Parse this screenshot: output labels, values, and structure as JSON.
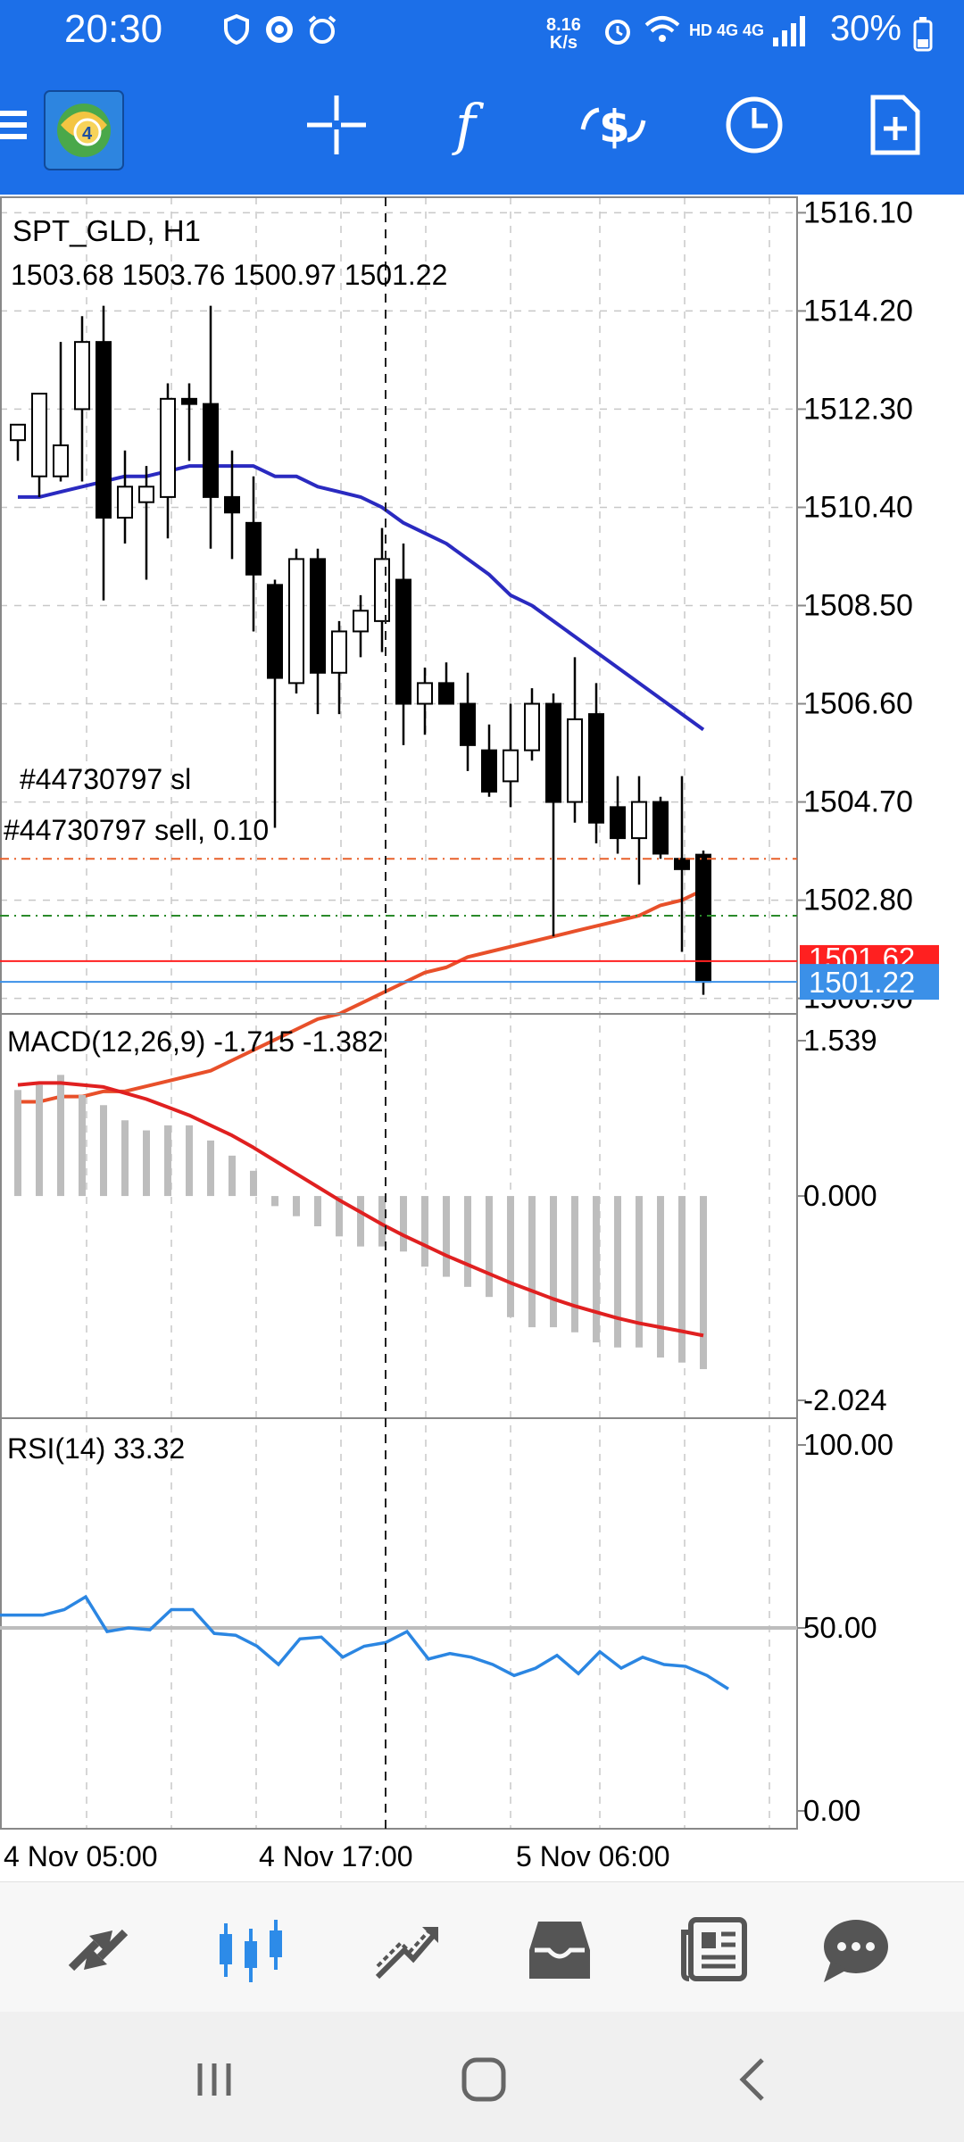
{
  "status_bar": {
    "time": "20:30",
    "net_rate_value": "8.16",
    "net_rate_unit": "K/s",
    "network": "HD 4G 4G",
    "battery": "30%"
  },
  "toolbar": {
    "icons": [
      "menu-icon",
      "app-logo-icon",
      "crosshair-icon",
      "indicators-icon",
      "symbol-change-icon",
      "timeframe-icon",
      "new-order-icon"
    ]
  },
  "chart_header": {
    "symbol": "SPT_GLD, H1",
    "ohlc": "1503.68 1503.76 1500.97 1501.22"
  },
  "order_lines": {
    "sl_label": "#44730797 sl",
    "sell_label": "#44730797 sell, 0.10"
  },
  "price_axis": {
    "ticks": [
      "1516.10",
      "1514.20",
      "1512.30",
      "1510.40",
      "1508.50",
      "1506.60",
      "1504.70",
      "1502.80",
      "1500.90"
    ],
    "ask_label": "1501.62",
    "bid_label": "1501.22"
  },
  "macd": {
    "label": "MACD(12,26,9) -1.715 -1.382",
    "ticks": [
      "1.539",
      "0.000",
      "-2.024"
    ]
  },
  "rsi": {
    "label": "RSI(14) 33.32",
    "ticks": [
      "100.00",
      "50.00",
      "0.00"
    ]
  },
  "time_axis": {
    "labels": [
      "4 Nov 05:00",
      "4 Nov 17:00",
      "5 Nov 06:00"
    ]
  },
  "colors": {
    "toolbar": "#1c6fe8",
    "ma_fast": "#2a2ac0",
    "ma_slow": "#e8502a",
    "signal": "#e02020",
    "rsi_line": "#2b86e2",
    "ask": "#ff2020",
    "bid": "#3b90e8",
    "active_tab": "#2d8be8"
  },
  "bottom_nav": {
    "items": [
      "quotes-icon",
      "chart-icon",
      "trade-icon",
      "history-icon",
      "news-icon",
      "chat-icon"
    ],
    "active": "chart-icon"
  },
  "chart_data": [
    {
      "type": "candlestick",
      "title": "SPT_GLD, H1",
      "y_ticks": [
        1516.1,
        1514.2,
        1512.3,
        1510.4,
        1508.5,
        1506.6,
        1504.7,
        1502.8,
        1500.9
      ],
      "ylim": [
        1500.6,
        1516.4
      ],
      "candles": [
        {
          "o": 1511.7,
          "h": 1512.0,
          "l": 1511.3,
          "c": 1512.0
        },
        {
          "o": 1511.0,
          "h": 1512.6,
          "l": 1510.6,
          "c": 1512.6
        },
        {
          "o": 1511.0,
          "h": 1513.6,
          "l": 1510.9,
          "c": 1511.6
        },
        {
          "o": 1512.3,
          "h": 1514.1,
          "l": 1510.9,
          "c": 1513.6
        },
        {
          "o": 1513.6,
          "h": 1514.3,
          "l": 1508.6,
          "c": 1510.2
        },
        {
          "o": 1510.2,
          "h": 1511.5,
          "l": 1509.7,
          "c": 1510.8
        },
        {
          "o": 1510.5,
          "h": 1511.2,
          "l": 1509.0,
          "c": 1510.8
        },
        {
          "o": 1510.6,
          "h": 1512.8,
          "l": 1509.8,
          "c": 1512.5
        },
        {
          "o": 1512.5,
          "h": 1512.8,
          "l": 1511.3,
          "c": 1512.4
        },
        {
          "o": 1512.4,
          "h": 1514.3,
          "l": 1509.6,
          "c": 1510.6
        },
        {
          "o": 1510.6,
          "h": 1511.5,
          "l": 1509.4,
          "c": 1510.3
        },
        {
          "o": 1510.1,
          "h": 1511.0,
          "l": 1508.0,
          "c": 1509.1
        },
        {
          "o": 1508.9,
          "h": 1509.0,
          "l": 1504.2,
          "c": 1507.1
        },
        {
          "o": 1507.0,
          "h": 1509.6,
          "l": 1506.8,
          "c": 1509.4
        },
        {
          "o": 1509.4,
          "h": 1509.6,
          "l": 1506.4,
          "c": 1507.2
        },
        {
          "o": 1507.2,
          "h": 1508.2,
          "l": 1506.4,
          "c": 1508.0
        },
        {
          "o": 1508.0,
          "h": 1508.7,
          "l": 1507.5,
          "c": 1508.4
        },
        {
          "o": 1508.2,
          "h": 1510.0,
          "l": 1507.6,
          "c": 1509.4
        },
        {
          "o": 1509.0,
          "h": 1509.7,
          "l": 1505.8,
          "c": 1506.6
        },
        {
          "o": 1506.6,
          "h": 1507.3,
          "l": 1506.0,
          "c": 1507.0
        },
        {
          "o": 1507.0,
          "h": 1507.4,
          "l": 1506.7,
          "c": 1506.6
        },
        {
          "o": 1506.6,
          "h": 1507.2,
          "l": 1505.3,
          "c": 1505.8
        },
        {
          "o": 1505.7,
          "h": 1506.2,
          "l": 1504.8,
          "c": 1504.9
        },
        {
          "o": 1505.1,
          "h": 1506.6,
          "l": 1504.6,
          "c": 1505.7
        },
        {
          "o": 1505.7,
          "h": 1506.9,
          "l": 1505.5,
          "c": 1506.6
        },
        {
          "o": 1506.6,
          "h": 1506.8,
          "l": 1502.1,
          "c": 1504.7
        },
        {
          "o": 1504.7,
          "h": 1507.5,
          "l": 1504.3,
          "c": 1506.3
        },
        {
          "o": 1506.4,
          "h": 1507.0,
          "l": 1503.9,
          "c": 1504.3
        },
        {
          "o": 1504.6,
          "h": 1505.2,
          "l": 1503.7,
          "c": 1504.0
        },
        {
          "o": 1504.0,
          "h": 1505.2,
          "l": 1503.1,
          "c": 1504.7
        },
        {
          "o": 1504.7,
          "h": 1504.8,
          "l": 1503.6,
          "c": 1503.7
        },
        {
          "o": 1503.6,
          "h": 1505.2,
          "l": 1501.8,
          "c": 1503.4
        },
        {
          "o": 1503.68,
          "h": 1503.76,
          "l": 1500.97,
          "c": 1501.22
        }
      ],
      "ma_fast": [
        1510.6,
        1510.6,
        1510.7,
        1510.8,
        1510.9,
        1511.0,
        1511.0,
        1511.1,
        1511.2,
        1511.2,
        1511.2,
        1511.2,
        1511.0,
        1511.0,
        1510.8,
        1510.7,
        1510.6,
        1510.4,
        1510.1,
        1509.9,
        1509.7,
        1509.4,
        1509.1,
        1508.7,
        1508.5,
        1508.2,
        1507.9,
        1507.6,
        1507.3,
        1507.0,
        1506.7,
        1506.4,
        1506.1
      ],
      "ma_slow": [
        1498.9,
        1498.9,
        1499.0,
        1499.0,
        1499.1,
        1499.1,
        1499.2,
        1499.3,
        1499.4,
        1499.5,
        1499.7,
        1499.9,
        1500.1,
        1500.3,
        1500.5,
        1500.6,
        1500.8,
        1501.0,
        1501.2,
        1501.4,
        1501.5,
        1501.7,
        1501.8,
        1501.9,
        1502.0,
        1502.1,
        1502.2,
        1502.3,
        1502.4,
        1502.5,
        1502.7,
        1502.8,
        1503.0
      ],
      "sl_level": 1503.6,
      "sell_level": 1502.5,
      "ask": 1501.62,
      "bid": 1501.22
    },
    {
      "type": "bar",
      "title": "MACD(12,26,9) -1.715 -1.382",
      "ylim": [
        -2.024,
        1.539
      ],
      "histogram": [
        1.05,
        1.1,
        1.2,
        1.0,
        0.9,
        0.75,
        0.65,
        0.7,
        0.7,
        0.55,
        0.4,
        0.25,
        -0.1,
        -0.2,
        -0.3,
        -0.4,
        -0.5,
        -0.5,
        -0.55,
        -0.7,
        -0.8,
        -0.9,
        -1.0,
        -1.2,
        -1.3,
        -1.3,
        -1.35,
        -1.45,
        -1.5,
        -1.5,
        -1.6,
        -1.65,
        -1.715
      ],
      "signal": [
        1.1,
        1.12,
        1.12,
        1.1,
        1.08,
        1.02,
        0.96,
        0.88,
        0.8,
        0.7,
        0.6,
        0.48,
        0.35,
        0.22,
        0.09,
        -0.04,
        -0.16,
        -0.28,
        -0.39,
        -0.49,
        -0.59,
        -0.68,
        -0.77,
        -0.86,
        -0.94,
        -1.02,
        -1.09,
        -1.15,
        -1.21,
        -1.26,
        -1.3,
        -1.34,
        -1.382
      ]
    },
    {
      "type": "line",
      "title": "RSI(14) 33.32",
      "ylim": [
        0,
        100
      ],
      "level": 50,
      "values": [
        53.5,
        55.0,
        58.5,
        49.0,
        50.0,
        49.5,
        55.0,
        55.0,
        48.5,
        48.0,
        45.0,
        40.0,
        47.0,
        47.5,
        42.0,
        45.0,
        46.0,
        49.0,
        41.5,
        43.0,
        42.0,
        40.0,
        37.0,
        39.0,
        42.5,
        37.5,
        43.5,
        39.0,
        42.0,
        40.0,
        39.5,
        37.0,
        33.32
      ]
    }
  ]
}
